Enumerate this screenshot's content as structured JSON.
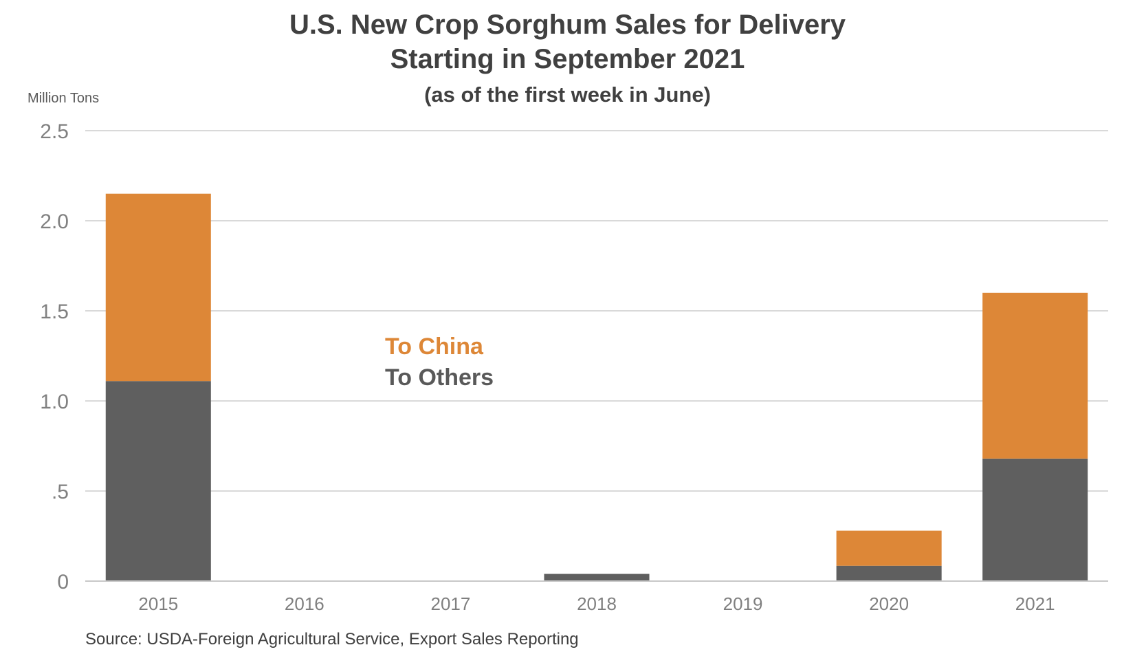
{
  "chart_data": {
    "type": "bar",
    "stacked": true,
    "title": "U.S. New Crop Sorghum Sales for Delivery",
    "title_line2": "Starting in September 2021",
    "subtitle": "(as of the first week in June)",
    "ylabel": "Million Tons",
    "source": "Source: USDA-Foreign Agricultural Service, Export Sales Reporting",
    "categories": [
      "2015",
      "2016",
      "2017",
      "2018",
      "2019",
      "2020",
      "2021"
    ],
    "yticks": [
      {
        "value": 0,
        "label": "0"
      },
      {
        "value": 0.5,
        "label": ".5"
      },
      {
        "value": 1.0,
        "label": "1.0"
      },
      {
        "value": 1.5,
        "label": "1.5"
      },
      {
        "value": 2.0,
        "label": "2.0"
      },
      {
        "value": 2.5,
        "label": "2.5"
      }
    ],
    "ylim": [
      0,
      2.5
    ],
    "grid": true,
    "series": [
      {
        "name": "To Others",
        "color": "#5f5f5f",
        "values": [
          1.11,
          0.0,
          0.0,
          0.04,
          0.0,
          0.085,
          0.68
        ]
      },
      {
        "name": "To China",
        "color": "#dd8737",
        "values": [
          1.04,
          0.003,
          0.003,
          0.0,
          0.003,
          0.195,
          0.92
        ]
      }
    ],
    "legend": [
      "To China",
      "To Others"
    ]
  }
}
